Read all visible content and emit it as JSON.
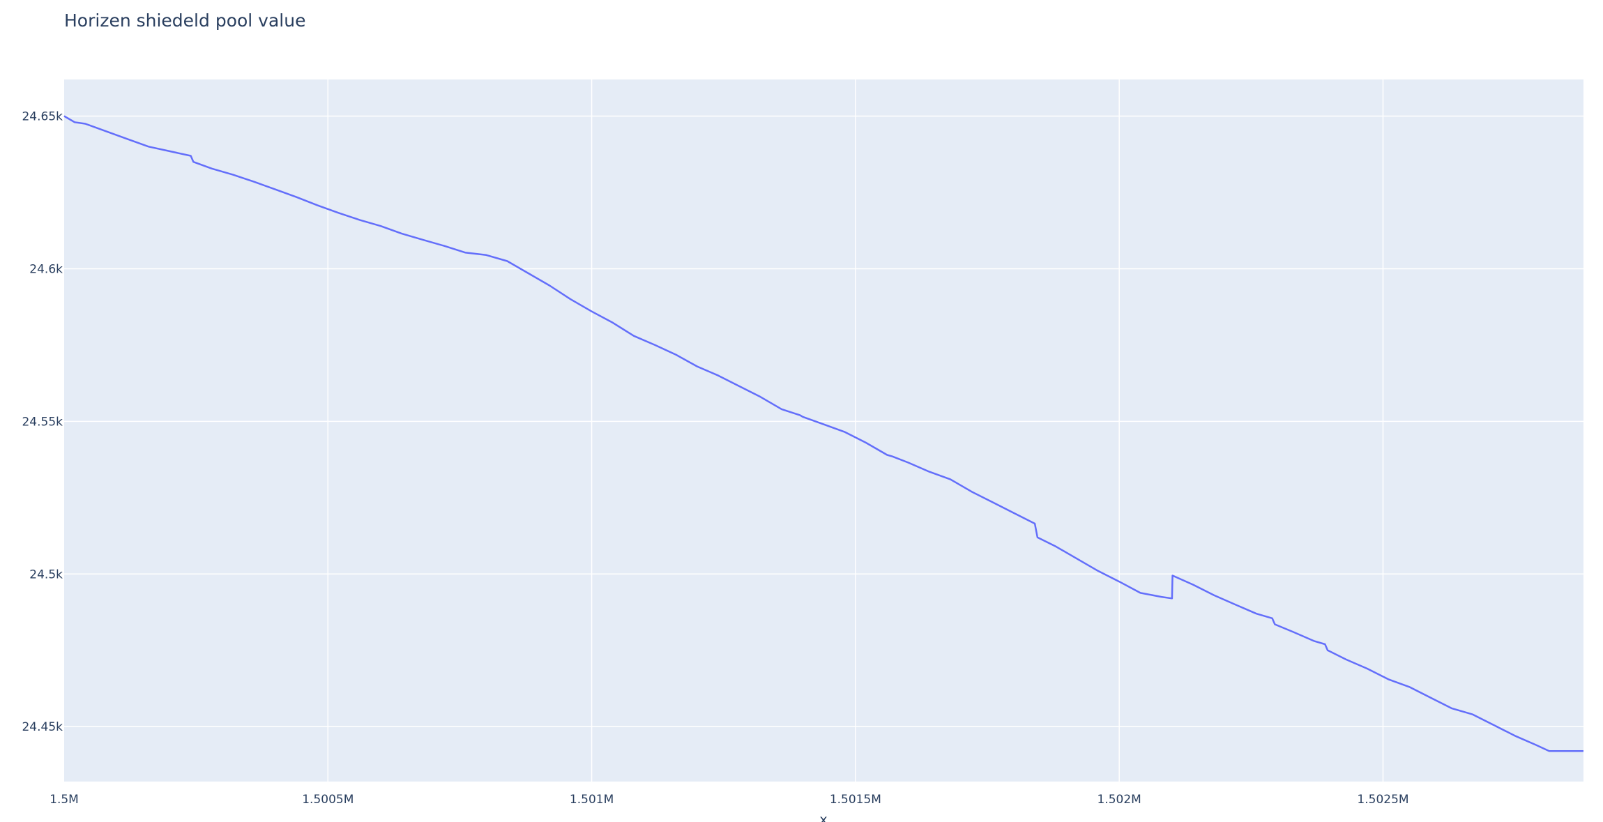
{
  "chart_data": {
    "type": "line",
    "title": "Horizen shiedeld pool value",
    "xlabel": "x",
    "ylabel": "",
    "xlim": [
      1500000,
      1502880
    ],
    "ylim": [
      24432,
      24662
    ],
    "grid": true,
    "legend": "none",
    "colors": {
      "plot_background": "#e5ecf6",
      "grid": "#ffffff",
      "line": "#636efa",
      "text": "#2a3f5f"
    },
    "x_ticks": [
      {
        "value": 1500000,
        "label": "1.5M"
      },
      {
        "value": 1500500,
        "label": "1.5005M"
      },
      {
        "value": 1501000,
        "label": "1.501M"
      },
      {
        "value": 1501500,
        "label": "1.5015M"
      },
      {
        "value": 1502000,
        "label": "1.502M"
      },
      {
        "value": 1502500,
        "label": "1.5025M"
      }
    ],
    "y_ticks": [
      {
        "value": 24450,
        "label": "24.45k"
      },
      {
        "value": 24500,
        "label": "24.5k"
      },
      {
        "value": 24550,
        "label": "24.55k"
      },
      {
        "value": 24600,
        "label": "24.6k"
      },
      {
        "value": 24650,
        "label": "24.65k"
      }
    ],
    "series": [
      {
        "x": [
          1500000,
          1500020,
          1500040,
          1500080,
          1500120,
          1500160,
          1500200,
          1500240,
          1500245,
          1500280,
          1500320,
          1500360,
          1500400,
          1500440,
          1500480,
          1500520,
          1500560,
          1500600,
          1500640,
          1500680,
          1500720,
          1500760,
          1500800,
          1500840,
          1500880,
          1500920,
          1500960,
          1501000,
          1501040,
          1501080,
          1501120,
          1501160,
          1501200,
          1501240,
          1501280,
          1501320,
          1501360,
          1501395,
          1501400,
          1501440,
          1501480,
          1501520,
          1501560,
          1501570,
          1501600,
          1501640,
          1501680,
          1501720,
          1501760,
          1501800,
          1501840,
          1501845,
          1501880,
          1501920,
          1501960,
          1502000,
          1502040,
          1502080,
          1502100,
          1502101,
          1502140,
          1502180,
          1502220,
          1502260,
          1502290,
          1502295,
          1502330,
          1502370,
          1502390,
          1502395,
          1502430,
          1502470,
          1502510,
          1502550,
          1502590,
          1502630,
          1502670,
          1502710,
          1502750,
          1502790,
          1502815,
          1502880
        ],
        "y": [
          24650,
          24648,
          24647.5,
          24645,
          24642.5,
          24640,
          24638.5,
          24637,
          24635,
          24632.8,
          24630.8,
          24628.5,
          24626,
          24623.5,
          24620.8,
          24618.3,
          24616,
          24614,
          24611.5,
          24609.5,
          24607.5,
          24605.3,
          24604.5,
          24602.5,
          24598.5,
          24594.5,
          24590,
          24586,
          24582.3,
          24578,
          24575,
          24571.8,
          24568,
          24565,
          24561.5,
          24558,
          24554,
          24552,
          24551.5,
          24549,
          24546.5,
          24543,
          24539,
          24538.5,
          24536.5,
          24533.5,
          24531,
          24527,
          24523.5,
          24520,
          24516.5,
          24512,
          24509,
          24505,
          24501,
          24497.5,
          24493.8,
          24492.5,
          24492,
          24499.5,
          24496.5,
          24493,
          24490,
          24487,
          24485.5,
          24483.5,
          24481,
          24478,
          24477,
          24475,
          24472,
          24469,
          24465.5,
          24463,
          24459.5,
          24456,
          24454,
          24450.5,
          24447,
          24444,
          24442,
          24442
        ]
      }
    ]
  }
}
